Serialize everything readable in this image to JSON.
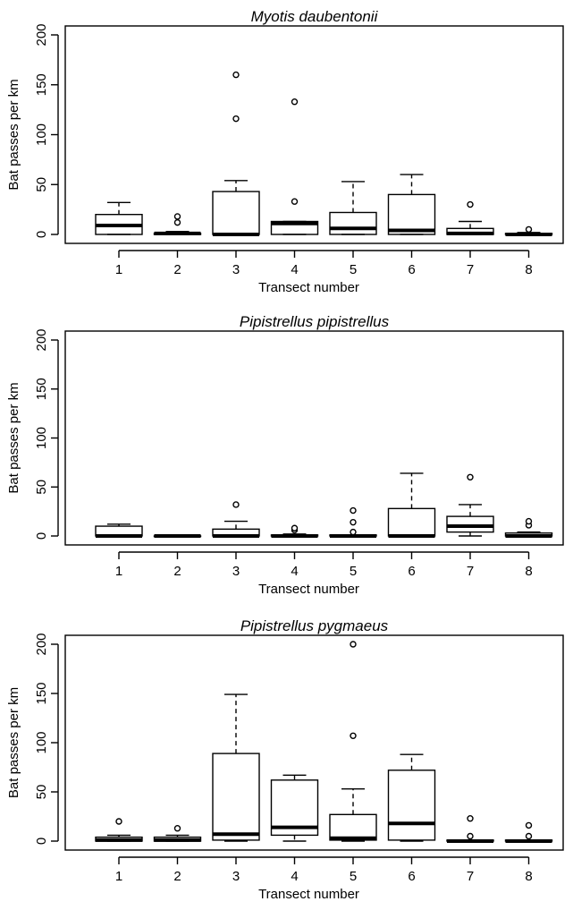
{
  "chart_data": [
    {
      "type": "boxplot",
      "title": "Myotis daubentonii",
      "xlabel": "Transect number",
      "ylabel": "Bat passes per km",
      "ylim": [
        0,
        200
      ],
      "yticks": [
        "0",
        "50",
        "100",
        "150",
        "200"
      ],
      "categories": [
        "1",
        "2",
        "3",
        "4",
        "5",
        "6",
        "7",
        "8"
      ],
      "boxes": [
        {
          "min": 0,
          "q1": 0,
          "median": 9,
          "q3": 20,
          "max": 32,
          "outliers": []
        },
        {
          "min": 0,
          "q1": 0,
          "median": 1,
          "q3": 1,
          "max": 3,
          "outliers": [
            12,
            18
          ]
        },
        {
          "min": 0,
          "q1": 0,
          "median": 0,
          "q3": 43,
          "max": 54,
          "outliers": [
            116,
            160
          ]
        },
        {
          "min": 0,
          "q1": 0,
          "median": 11,
          "q3": 13,
          "max": 13,
          "outliers": [
            33,
            133
          ]
        },
        {
          "min": 0,
          "q1": 0,
          "median": 6,
          "q3": 22,
          "max": 53,
          "outliers": []
        },
        {
          "min": 0,
          "q1": 0,
          "median": 4,
          "q3": 40,
          "max": 60,
          "outliers": []
        },
        {
          "min": 0,
          "q1": 0,
          "median": 1,
          "q3": 6,
          "max": 13,
          "outliers": [
            30
          ]
        },
        {
          "min": 0,
          "q1": 0,
          "median": 0,
          "q3": 1,
          "max": 2,
          "outliers": [
            5
          ]
        }
      ]
    },
    {
      "type": "boxplot",
      "title": "Pipistrellus pipistrellus",
      "xlabel": "Transect number",
      "ylabel": "Bat passes per km",
      "ylim": [
        0,
        200
      ],
      "yticks": [
        "0",
        "50",
        "100",
        "150",
        "200"
      ],
      "categories": [
        "1",
        "2",
        "3",
        "4",
        "5",
        "6",
        "7",
        "8"
      ],
      "boxes": [
        {
          "min": 0,
          "q1": 0,
          "median": 0,
          "q3": 10,
          "max": 12,
          "outliers": []
        },
        {
          "min": 0,
          "q1": 0,
          "median": 0,
          "q3": 0,
          "max": 0,
          "outliers": []
        },
        {
          "min": 0,
          "q1": 0,
          "median": 0,
          "q3": 7,
          "max": 15,
          "outliers": [
            32
          ]
        },
        {
          "min": 0,
          "q1": 0,
          "median": 0,
          "q3": 1,
          "max": 2,
          "outliers": [
            6,
            8
          ]
        },
        {
          "min": 0,
          "q1": 0,
          "median": 0,
          "q3": 1,
          "max": 1,
          "outliers": [
            4,
            14,
            26
          ]
        },
        {
          "min": 0,
          "q1": 0,
          "median": 0,
          "q3": 28,
          "max": 64,
          "outliers": []
        },
        {
          "min": 0,
          "q1": 4,
          "median": 10,
          "q3": 20,
          "max": 32,
          "outliers": [
            60
          ]
        },
        {
          "min": 0,
          "q1": 0,
          "median": 0,
          "q3": 3,
          "max": 4,
          "outliers": [
            11,
            15
          ]
        }
      ]
    },
    {
      "type": "boxplot",
      "title": "Pipistrellus pygmaeus",
      "xlabel": "Transect number",
      "ylabel": "Bat passes per km",
      "ylim": [
        0,
        200
      ],
      "yticks": [
        "0",
        "50",
        "100",
        "150",
        "200"
      ],
      "categories": [
        "1",
        "2",
        "3",
        "4",
        "5",
        "6",
        "7",
        "8"
      ],
      "boxes": [
        {
          "min": 0,
          "q1": 0,
          "median": 1,
          "q3": 4,
          "max": 6,
          "outliers": [
            20
          ]
        },
        {
          "min": 0,
          "q1": 0,
          "median": 1,
          "q3": 4,
          "max": 6,
          "outliers": [
            13
          ]
        },
        {
          "min": 0,
          "q1": 1,
          "median": 7,
          "q3": 89,
          "max": 149,
          "outliers": []
        },
        {
          "min": 0,
          "q1": 6,
          "median": 14,
          "q3": 62,
          "max": 67,
          "outliers": []
        },
        {
          "min": 0,
          "q1": 1,
          "median": 3,
          "q3": 27,
          "max": 53,
          "outliers": [
            107,
            200
          ]
        },
        {
          "min": 0,
          "q1": 1,
          "median": 18,
          "q3": 72,
          "max": 88,
          "outliers": []
        },
        {
          "min": 0,
          "q1": 0,
          "median": 0,
          "q3": 1,
          "max": 1,
          "outliers": [
            5,
            23
          ]
        },
        {
          "min": 0,
          "q1": 0,
          "median": 0,
          "q3": 1,
          "max": 1,
          "outliers": [
            5,
            16
          ]
        }
      ]
    }
  ]
}
